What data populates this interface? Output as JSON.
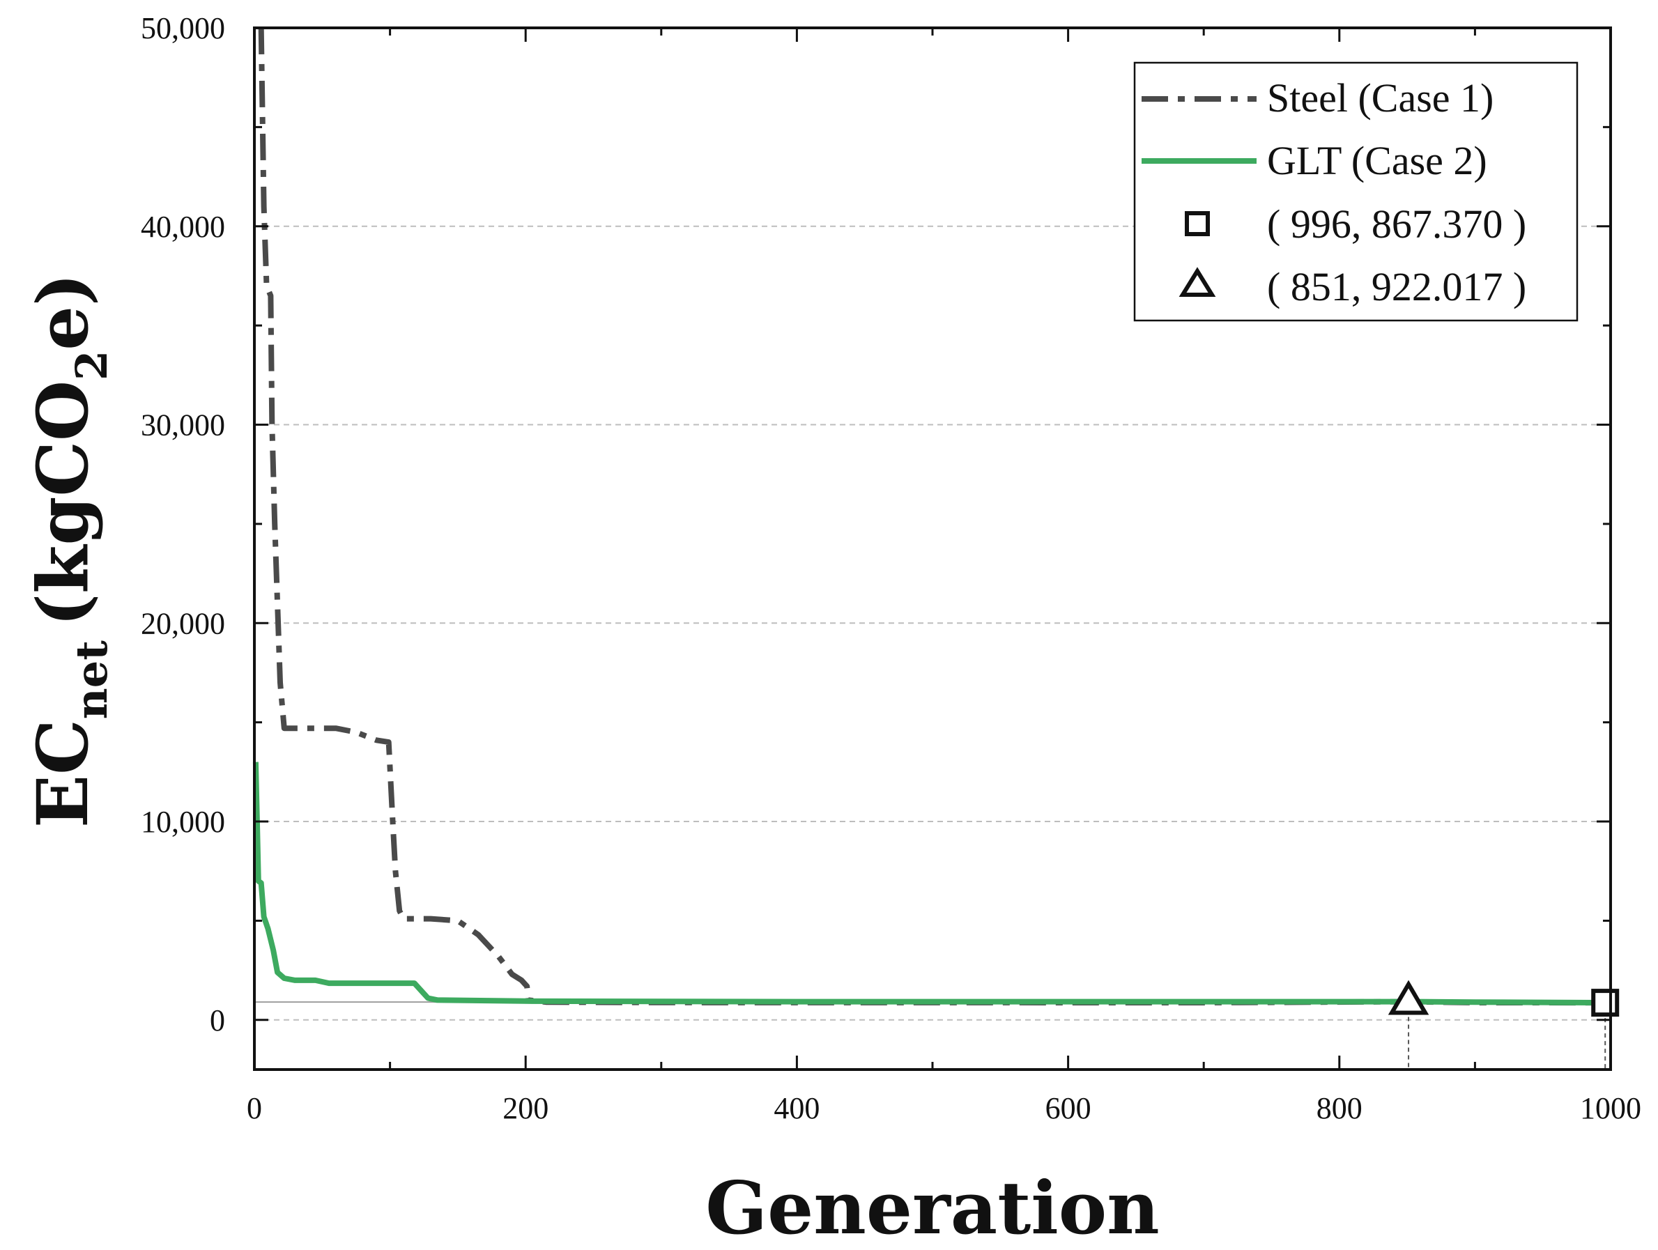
{
  "chart_data": {
    "type": "line",
    "title": "",
    "xlabel": "Generation",
    "ylabel_main": "EC",
    "ylabel_sub": "net",
    "ylabel_unit_pre": "(kgCO",
    "ylabel_unit_sub": "2",
    "ylabel_unit_post": "e)",
    "xlim": [
      0,
      1000
    ],
    "ylim": [
      -2500,
      50000
    ],
    "x_ticks": [
      0,
      200,
      400,
      600,
      800,
      1000
    ],
    "x_tick_labels": [
      "0",
      "200",
      "400",
      "600",
      "800",
      "1000"
    ],
    "y_ticks": [
      0,
      10000,
      20000,
      30000,
      40000,
      50000
    ],
    "y_tick_labels": [
      "0",
      "10,000",
      "20,000",
      "30,000",
      "40,000",
      "50,000"
    ],
    "grid": "horizontal dashed",
    "legend_position": "top-right",
    "reference_line_y": 900,
    "series": [
      {
        "name": "Steel (Case 1)",
        "style": "dash-dot",
        "color": "#4a4a4a",
        "points": [
          [
            5,
            50000
          ],
          [
            7,
            41000
          ],
          [
            9,
            37000
          ],
          [
            12,
            36500
          ],
          [
            13,
            30000
          ],
          [
            15,
            25000
          ],
          [
            17,
            21000
          ],
          [
            19,
            17000
          ],
          [
            22,
            14700
          ],
          [
            60,
            14700
          ],
          [
            75,
            14500
          ],
          [
            90,
            14100
          ],
          [
            99,
            14000
          ],
          [
            102,
            10000
          ],
          [
            104,
            7500
          ],
          [
            107,
            5500
          ],
          [
            110,
            5100
          ],
          [
            130,
            5100
          ],
          [
            150,
            5000
          ],
          [
            165,
            4300
          ],
          [
            180,
            3200
          ],
          [
            190,
            2300
          ],
          [
            197,
            2000
          ],
          [
            201,
            1700
          ],
          [
            202,
            1000
          ],
          [
            215,
            900
          ],
          [
            300,
            880
          ],
          [
            500,
            875
          ],
          [
            700,
            870
          ],
          [
            851,
            922
          ],
          [
            900,
            870
          ],
          [
            996,
            867
          ]
        ]
      },
      {
        "name": "GLT (Case 2)",
        "style": "solid",
        "color": "#3daa5f",
        "points": [
          [
            1,
            13000
          ],
          [
            2,
            10000
          ],
          [
            3,
            7000
          ],
          [
            5,
            6900
          ],
          [
            7,
            5200
          ],
          [
            10,
            4600
          ],
          [
            14,
            3500
          ],
          [
            17,
            2400
          ],
          [
            22,
            2100
          ],
          [
            30,
            2000
          ],
          [
            45,
            2000
          ],
          [
            55,
            1850
          ],
          [
            70,
            1850
          ],
          [
            100,
            1850
          ],
          [
            118,
            1850
          ],
          [
            124,
            1400
          ],
          [
            128,
            1100
          ],
          [
            135,
            1000
          ],
          [
            200,
            950
          ],
          [
            400,
            920
          ],
          [
            600,
            920
          ],
          [
            800,
            920
          ],
          [
            851,
            922
          ],
          [
            900,
            900
          ],
          [
            996,
            867
          ],
          [
            1000,
            867
          ]
        ]
      }
    ],
    "markers": [
      {
        "shape": "square",
        "x": 996,
        "y": 867.37,
        "label": "( 996, 867.370 )"
      },
      {
        "shape": "triangle",
        "x": 851,
        "y": 922.017,
        "label": "( 851, 922.017 )"
      }
    ]
  }
}
